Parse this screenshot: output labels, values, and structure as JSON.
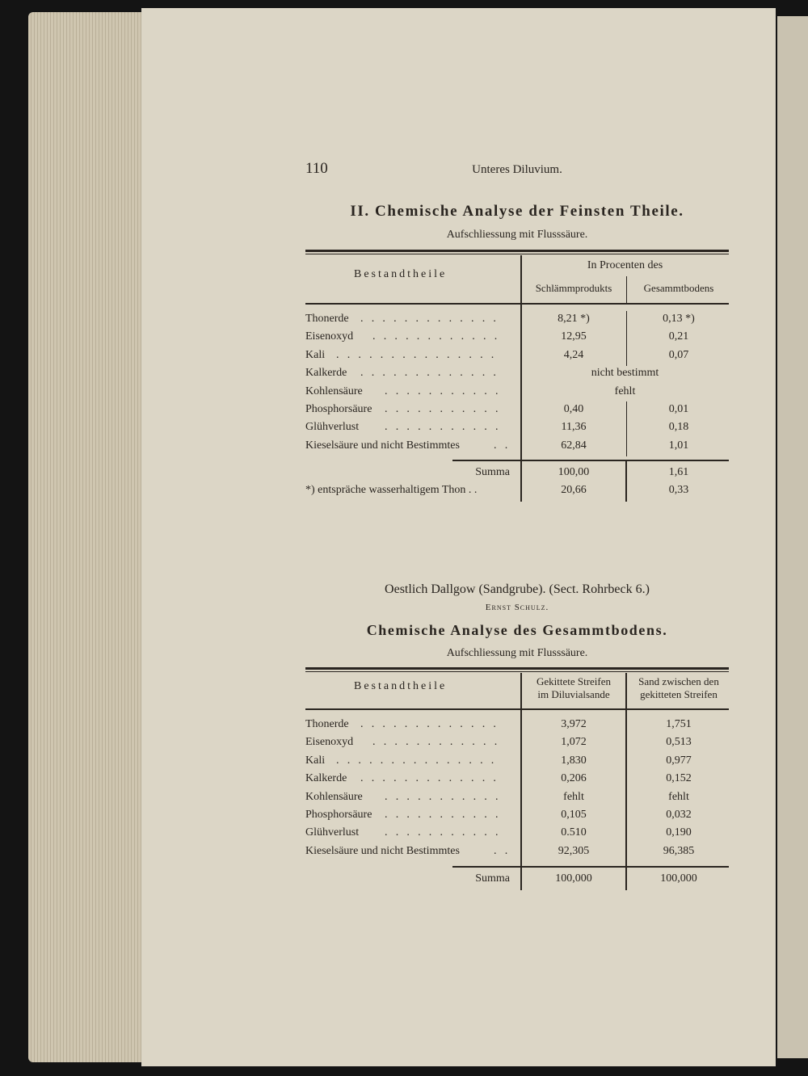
{
  "header": {
    "page_number": "110",
    "running_title": "Unteres Diluvium."
  },
  "section1": {
    "title": "II. Chemische Analyse der Feinsten Theile.",
    "subtitle": "Aufschliessung mit Flusssäure.",
    "table": {
      "col0": "Bestandtheile",
      "group_header": "In Procenten des",
      "col1": "Schlämmprodukts",
      "col2": "Gesammtbodens",
      "rows": [
        {
          "label": "Thonerde",
          "a": "8,21 *)",
          "b": "0,13 *)"
        },
        {
          "label": "Eisenoxyd",
          "a": "12,95",
          "b": "0,21"
        },
        {
          "label": "Kali",
          "a": "4,24",
          "b": "0,07"
        },
        {
          "label": "Kalkerde",
          "span": "nicht bestimmt"
        },
        {
          "label": "Kohlensäure",
          "span": "fehlt"
        },
        {
          "label": "Phosphorsäure",
          "a": "0,40",
          "b": "0,01"
        },
        {
          "label": "Glühverlust",
          "a": "11,36",
          "b": "0,18"
        },
        {
          "label": "Kieselsäure und nicht Bestimmtes",
          "a": "62,84",
          "b": "1,01"
        }
      ],
      "summa": {
        "label": "Summa",
        "a": "100,00",
        "b": "1,61"
      },
      "footnote": {
        "label": "*) entspräche wasserhaltigem Thon . .",
        "a": "20,66",
        "b": "0,33"
      }
    }
  },
  "section2": {
    "location": "Oestlich Dallgow (Sandgrube).   (Sect. Rohrbeck 6.)",
    "author": "Ernst Schulz.",
    "title": "Chemische Analyse des Gesammtbodens.",
    "subtitle": "Aufschliessung mit Flusssäure.",
    "table": {
      "col0": "Bestandtheile",
      "col1_line1": "Gekittete Streifen",
      "col1_line2": "im Diluvialsande",
      "col2_line1": "Sand zwischen den",
      "col2_line2": "gekitteten Streifen",
      "rows": [
        {
          "label": "Thonerde",
          "a": "3,972",
          "b": "1,751"
        },
        {
          "label": "Eisenoxyd",
          "a": "1,072",
          "b": "0,513"
        },
        {
          "label": "Kali",
          "a": "1,830",
          "b": "0,977"
        },
        {
          "label": "Kalkerde",
          "a": "0,206",
          "b": "0,152"
        },
        {
          "label": "Kohlensäure",
          "a": "fehlt",
          "b": "fehlt"
        },
        {
          "label": "Phosphorsäure",
          "a": "0,105",
          "b": "0,032"
        },
        {
          "label": "Glühverlust",
          "a": "0.510",
          "b": "0,190"
        },
        {
          "label": "Kieselsäure und nicht Bestimmtes",
          "a": "92,305",
          "b": "96,385"
        }
      ],
      "summa": {
        "label": "Summa",
        "a": "100,000",
        "b": "100,000"
      }
    }
  }
}
